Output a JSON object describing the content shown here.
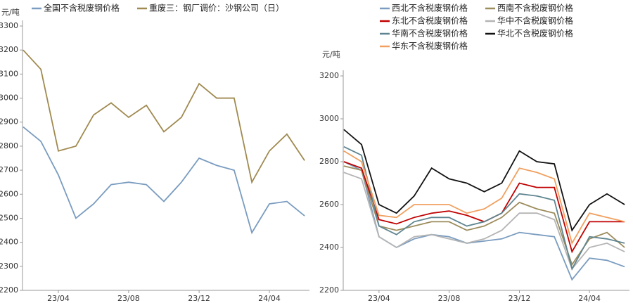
{
  "chart_data": [
    {
      "type": "line",
      "y_unit": "元/吨",
      "x": [
        2023.083,
        2023.167,
        2023.25,
        2023.333,
        2023.417,
        2023.5,
        2023.583,
        2023.667,
        2023.75,
        2023.833,
        2023.917,
        2024.0,
        2024.083,
        2024.167,
        2024.25,
        2024.333,
        2024.417
      ],
      "xlim": [
        2023.08,
        2024.44
      ],
      "xticks": [
        {
          "value": 2023.25,
          "label": "23/04"
        },
        {
          "value": 2023.583,
          "label": "23/08"
        },
        {
          "value": 2023.917,
          "label": "23/12"
        },
        {
          "value": 2024.25,
          "label": "24/04"
        }
      ],
      "ylim": [
        2200,
        3300
      ],
      "yticks": [
        2200,
        2300,
        2400,
        2500,
        2600,
        2700,
        2800,
        2900,
        3000,
        3100,
        3200,
        3300
      ],
      "series": [
        {
          "name": "全国不含税废钢价格",
          "color": "#7a9cc0",
          "values": [
            2880,
            2820,
            2680,
            2500,
            2560,
            2640,
            2650,
            2640,
            2570,
            2650,
            2750,
            2720,
            2700,
            2440,
            2560,
            2570,
            2510
          ]
        },
        {
          "name": "重废三：钢厂调价：沙钢公司（日）",
          "color": "#a08a50",
          "values": [
            3200,
            3120,
            2780,
            2800,
            2930,
            2980,
            2920,
            2970,
            2860,
            2920,
            3060,
            3000,
            3000,
            2650,
            2780,
            2850,
            2740
          ]
        }
      ]
    },
    {
      "type": "line",
      "y_unit": "元/吨",
      "x": [
        2023.083,
        2023.167,
        2023.25,
        2023.333,
        2023.417,
        2023.5,
        2023.583,
        2023.667,
        2023.75,
        2023.833,
        2023.917,
        2024.0,
        2024.083,
        2024.167,
        2024.25,
        2024.333,
        2024.417
      ],
      "xlim": [
        2023.08,
        2024.44
      ],
      "xticks": [
        {
          "value": 2023.25,
          "label": "23/04"
        },
        {
          "value": 2023.583,
          "label": "23/08"
        },
        {
          "value": 2023.917,
          "label": "23/12"
        },
        {
          "value": 2024.25,
          "label": "24/04"
        }
      ],
      "ylim": [
        2200,
        3200
      ],
      "yticks": [
        2200,
        2400,
        2600,
        2800,
        3000,
        3200
      ],
      "series": [
        {
          "name": "西北不含税废钢价格",
          "color": "#7a9cc0",
          "values": [
            2800,
            2760,
            2450,
            2400,
            2440,
            2460,
            2450,
            2420,
            2430,
            2440,
            2470,
            2460,
            2450,
            2250,
            2350,
            2340,
            2310
          ]
        },
        {
          "name": "西南不含税废钢价格",
          "color": "#9c8c5c",
          "values": [
            2780,
            2760,
            2500,
            2480,
            2500,
            2520,
            2520,
            2480,
            2500,
            2540,
            2610,
            2580,
            2560,
            2320,
            2440,
            2470,
            2400
          ]
        },
        {
          "name": "东北不含税废钢价格",
          "color": "#c00000",
          "values": [
            2800,
            2770,
            2530,
            2510,
            2540,
            2560,
            2570,
            2550,
            2520,
            2560,
            2700,
            2680,
            2680,
            2380,
            2520,
            2520,
            2520
          ]
        },
        {
          "name": "华中不含税废钢价格",
          "color": "#b4b4b4",
          "values": [
            2750,
            2720,
            2450,
            2400,
            2450,
            2460,
            2440,
            2420,
            2440,
            2480,
            2560,
            2560,
            2530,
            2300,
            2400,
            2420,
            2380
          ]
        },
        {
          "name": "华南不含税废钢价格",
          "color": "#5f8590",
          "values": [
            2870,
            2830,
            2500,
            2460,
            2520,
            2540,
            2540,
            2500,
            2520,
            2560,
            2650,
            2640,
            2620,
            2300,
            2450,
            2440,
            2420
          ]
        },
        {
          "name": "华北不含税废钢价格",
          "color": "#111111",
          "values": [
            2950,
            2880,
            2600,
            2560,
            2640,
            2770,
            2720,
            2700,
            2660,
            2700,
            2850,
            2800,
            2790,
            2480,
            2600,
            2650,
            2600
          ]
        },
        {
          "name": "华东不含税废钢价格",
          "color": "#f0a060",
          "values": [
            2850,
            2800,
            2550,
            2540,
            2600,
            2600,
            2600,
            2560,
            2580,
            2630,
            2770,
            2750,
            2720,
            2420,
            2560,
            2540,
            2520
          ]
        }
      ]
    }
  ]
}
